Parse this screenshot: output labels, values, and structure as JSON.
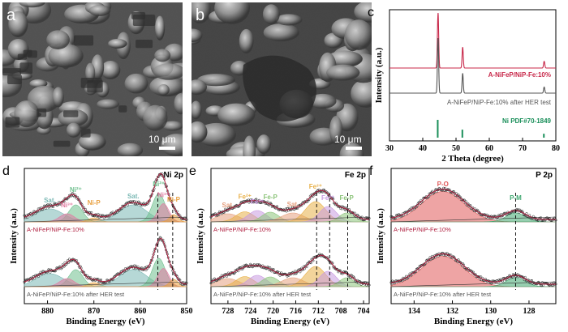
{
  "panels": {
    "a": {
      "letter": "a",
      "scale_label": "10 μm"
    },
    "b": {
      "letter": "b",
      "scale_label": "10 μm"
    }
  },
  "chart_data": [
    {
      "panel": "c",
      "type": "line",
      "xlabel": "2 Theta (degree)",
      "ylabel": "Intensity (a.u.)",
      "xlim": [
        30,
        80
      ],
      "xticks": [
        30,
        40,
        50,
        60,
        70,
        80
      ],
      "series": [
        {
          "name": "A-NiFeP/NiP-Fe:10%",
          "color": "#c8284a",
          "peaks": [
            44.6,
            52.0,
            76.5
          ],
          "heights": [
            1.0,
            0.38,
            0.12
          ]
        },
        {
          "name": "A-NiFeP/NiP-Fe:10% after HER test",
          "color": "#555555",
          "peaks": [
            44.6,
            52.0,
            76.5
          ],
          "heights": [
            1.0,
            0.36,
            0.11
          ]
        },
        {
          "name": "Ni PDF#70-1849",
          "color": "#1a8f5a",
          "sticks": [
            44.5,
            51.9,
            76.4
          ],
          "heights": [
            1.0,
            0.45,
            0.22
          ]
        }
      ]
    },
    {
      "panel": "d",
      "type": "line",
      "title": "Ni 2p",
      "xlabel": "Binding Energy (eV)",
      "ylabel": "Intensity (a.u.)",
      "xlim": [
        885,
        850
      ],
      "xticks": [
        880,
        870,
        860,
        850
      ],
      "curve_labels": [
        "A-NiFeP/NiP-Fe:10%",
        "A-NiFeP/NiP-Fe:10% after HER test"
      ],
      "annotations": [
        "Sat.",
        "Ni²⁺",
        "Ni³⁺",
        "Ni-P",
        "Sat.",
        "Ni²⁺",
        "Ni³⁺",
        "Ni-P"
      ],
      "peaks": [
        {
          "label": "Sat.",
          "center": 879.5,
          "width": 3.0,
          "height": 0.32,
          "color": "#7ab8b4"
        },
        {
          "label": "Ni²⁺",
          "center": 873.9,
          "width": 1.5,
          "height": 0.42,
          "color": "#6fbf8e"
        },
        {
          "label": "Ni³⁺",
          "center": 875.8,
          "width": 1.6,
          "height": 0.2,
          "color": "#e07aa0"
        },
        {
          "label": "Ni-P",
          "center": 870.0,
          "width": 1.2,
          "height": 0.1,
          "color": "#e8a040"
        },
        {
          "label": "Sat.",
          "center": 861.5,
          "width": 3.0,
          "height": 0.42,
          "color": "#7ab8b4"
        },
        {
          "label": "Ni²⁺",
          "center": 856.0,
          "width": 1.4,
          "height": 0.7,
          "color": "#6fbf8e"
        },
        {
          "label": "Ni³⁺",
          "center": 855.0,
          "width": 1.2,
          "height": 0.45,
          "color": "#e07aa0"
        },
        {
          "label": "Ni-P",
          "center": 852.8,
          "width": 0.9,
          "height": 0.18,
          "color": "#e8a040"
        }
      ],
      "dashed_lines": [
        856.2,
        853.0
      ]
    },
    {
      "panel": "e",
      "type": "line",
      "title": "Fe 2p",
      "xlabel": "Binding Energy (eV)",
      "ylabel": "Intensity (a.u.)",
      "xlim": [
        731,
        703
      ],
      "xticks": [
        728,
        724,
        720,
        716,
        712,
        708,
        704
      ],
      "curve_labels": [
        "A-NiFeP/NiP-Fe:10%",
        "A-NiFeP/NiP-Fe:10% after HER test"
      ],
      "annotations": [
        "Sat.",
        "Fe²⁺",
        "Fe³⁺",
        "Fe-P",
        "Sat.",
        "Fe³⁺",
        "Fe²⁺",
        "Fe-P"
      ],
      "peaks": [
        {
          "label": "Sat.",
          "center": 728.0,
          "width": 2.0,
          "height": 0.2,
          "color": "#e6a080"
        },
        {
          "label": "Fe²⁺",
          "center": 725.0,
          "width": 1.6,
          "height": 0.25,
          "color": "#e8b048"
        },
        {
          "label": "Fe³⁺",
          "center": 722.8,
          "width": 1.6,
          "height": 0.28,
          "color": "#c89ae0"
        },
        {
          "label": "Fe-P",
          "center": 720.5,
          "width": 1.5,
          "height": 0.24,
          "color": "#8cc47a"
        },
        {
          "label": "Sat.",
          "center": 716.5,
          "width": 2.0,
          "height": 0.22,
          "color": "#e6a080"
        },
        {
          "label": "Fe³⁺",
          "center": 712.5,
          "width": 1.8,
          "height": 0.5,
          "color": "#e8b048"
        },
        {
          "label": "Fe²⁺",
          "center": 710.3,
          "width": 1.5,
          "height": 0.38,
          "color": "#c89ae0"
        },
        {
          "label": "Fe-P",
          "center": 707.0,
          "width": 1.3,
          "height": 0.22,
          "color": "#8cc47a"
        }
      ],
      "dashed_lines": [
        712.3,
        710.0,
        706.8
      ]
    },
    {
      "panel": "f",
      "type": "line",
      "title": "P 2p",
      "xlabel": "Binding Energy (eV)",
      "ylabel": "Intensity (a.u.)",
      "xlim": [
        135.2,
        126.6
      ],
      "xticks": [
        134,
        132,
        130,
        128
      ],
      "curve_labels": [
        "A-NiFeP/NiP-Fe:10%",
        "A-NiFeP/NiP-Fe:10% after HER test"
      ],
      "annotations": [
        "P-O",
        "P-M"
      ],
      "peaks": [
        {
          "label": "P-O",
          "center": 132.5,
          "width": 1.1,
          "height": 0.75,
          "color": "#e05a5a"
        },
        {
          "label": "P-M",
          "center": 128.7,
          "width": 0.5,
          "height": 0.22,
          "color": "#3fa870"
        }
      ],
      "dashed_lines": [
        128.7
      ]
    }
  ]
}
